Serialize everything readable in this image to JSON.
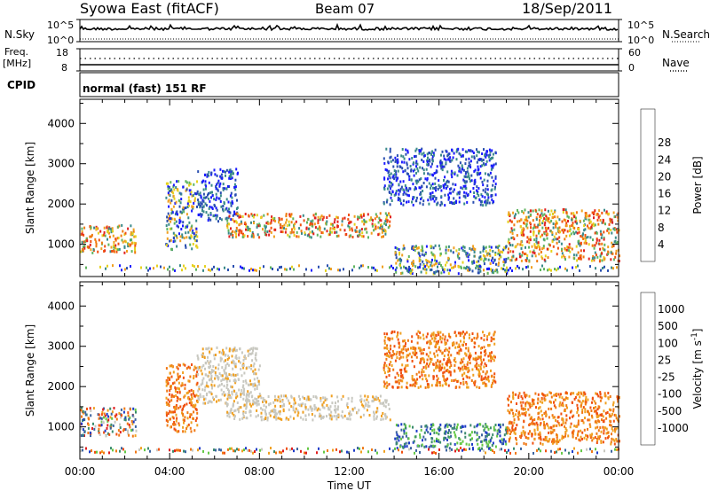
{
  "header": {
    "station": "Syowa East (fitACF)",
    "beam": "Beam 07",
    "date": "18/Sep/2011"
  },
  "strips": {
    "noise": {
      "left_label": "N.Sky",
      "right_label": "N.Search",
      "left_ticks": [
        "10^5",
        "10^0"
      ],
      "right_ticks": [
        "10^5",
        "10^0"
      ]
    },
    "freq": {
      "left_label_1": "Freq.",
      "left_label_2": "[MHz]",
      "left_ticks": [
        "18",
        "8"
      ],
      "right_label": "Nave",
      "right_ticks": [
        "60",
        "0"
      ]
    },
    "cpid": {
      "label": "CPID",
      "text": "normal (fast) 151 RF"
    }
  },
  "chart_data": [
    {
      "type": "heatmap",
      "panel": "power",
      "ylabel": "Slant Range [km]",
      "ylim": [
        200,
        4600
      ],
      "yticks": [
        1000,
        2000,
        3000,
        4000
      ],
      "xlim_hours": [
        0,
        24
      ],
      "colorbar": {
        "label": "Power [dB]",
        "ticks": [
          "4",
          "8",
          "12",
          "16",
          "20",
          "24",
          "28"
        ],
        "colors": [
          "#1a1aff",
          "#2a4fb0",
          "#3a8a8a",
          "#5fb45f",
          "#e6d21e",
          "#f0a020",
          "#f07a10",
          "#f05010",
          "#e02020"
        ]
      },
      "echo_regions": [
        {
          "t": [
            0.0,
            2.5
          ],
          "range": [
            800,
            1500
          ],
          "level": "high"
        },
        {
          "t": [
            3.8,
            5.2
          ],
          "range": [
            900,
            2600
          ],
          "level": "mid"
        },
        {
          "t": [
            5.2,
            7.0
          ],
          "range": [
            1600,
            2900
          ],
          "level": "low"
        },
        {
          "t": [
            6.5,
            13.8
          ],
          "range": [
            1200,
            1800
          ],
          "level": "high"
        },
        {
          "t": [
            13.5,
            18.5
          ],
          "range": [
            2000,
            3400
          ],
          "level": "low"
        },
        {
          "t": [
            14.0,
            19.0
          ],
          "range": [
            300,
            1000
          ],
          "level": "mid"
        },
        {
          "t": [
            19.0,
            24.0
          ],
          "range": [
            600,
            1900
          ],
          "level": "high"
        }
      ]
    },
    {
      "type": "heatmap",
      "panel": "velocity",
      "ylabel": "Slant Range [km]",
      "ylim": [
        200,
        4600
      ],
      "yticks": [
        1000,
        2000,
        3000,
        4000
      ],
      "xlim_hours": [
        0,
        24
      ],
      "xticks": [
        "00:00",
        "04:00",
        "08:00",
        "12:00",
        "16:00",
        "20:00",
        "00:00"
      ],
      "xlabel": "Time UT",
      "colorbar": {
        "label": "Velocity [m s^-1]",
        "ticks": [
          "1000",
          "500",
          "100",
          "25",
          "-25",
          "-100",
          "-500",
          "-1000"
        ],
        "colors": [
          "#1e3cc8",
          "#3c64a0",
          "#3c8c6e",
          "#64c846",
          "#c8c8c0",
          "#f0a020",
          "#f07814",
          "#f05010",
          "#e01e1e"
        ]
      },
      "echo_regions": [
        {
          "t": [
            0.0,
            2.5
          ],
          "range": [
            800,
            1500
          ],
          "level": "mixed"
        },
        {
          "t": [
            3.8,
            5.2
          ],
          "range": [
            900,
            2600
          ],
          "level": "negative"
        },
        {
          "t": [
            5.2,
            8.0
          ],
          "range": [
            1600,
            3000
          ],
          "level": "near-zero"
        },
        {
          "t": [
            6.5,
            13.8
          ],
          "range": [
            1200,
            1800
          ],
          "level": "near-zero"
        },
        {
          "t": [
            13.5,
            18.5
          ],
          "range": [
            2000,
            3400
          ],
          "level": "negative"
        },
        {
          "t": [
            14.0,
            19.0
          ],
          "range": [
            500,
            1100
          ],
          "level": "positive"
        },
        {
          "t": [
            19.0,
            24.0
          ],
          "range": [
            600,
            1900
          ],
          "level": "negative"
        }
      ]
    }
  ]
}
